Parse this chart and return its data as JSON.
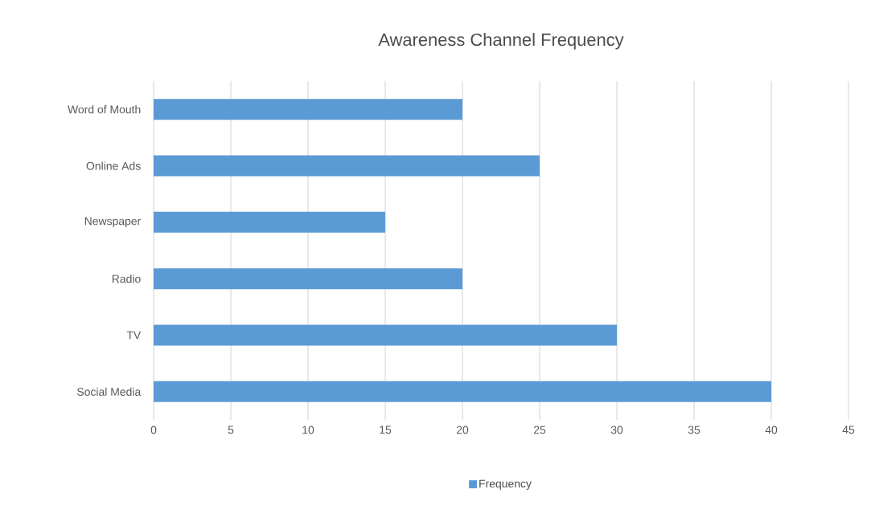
{
  "chart_data": {
    "type": "bar",
    "orientation": "horizontal",
    "title": "Awareness Channel Frequency",
    "categories": [
      "Word of Mouth",
      "Online Ads",
      "Newspaper",
      "Radio",
      "TV",
      "Social Media"
    ],
    "series": [
      {
        "name": "Frequency",
        "color": "#5b9bd5",
        "values": [
          20,
          25,
          15,
          20,
          30,
          40
        ]
      }
    ],
    "xlim": [
      0,
      45
    ],
    "xticks": [
      0,
      5,
      10,
      15,
      20,
      25,
      30,
      35,
      40,
      45
    ],
    "grid": "x",
    "legend": "bottom"
  }
}
